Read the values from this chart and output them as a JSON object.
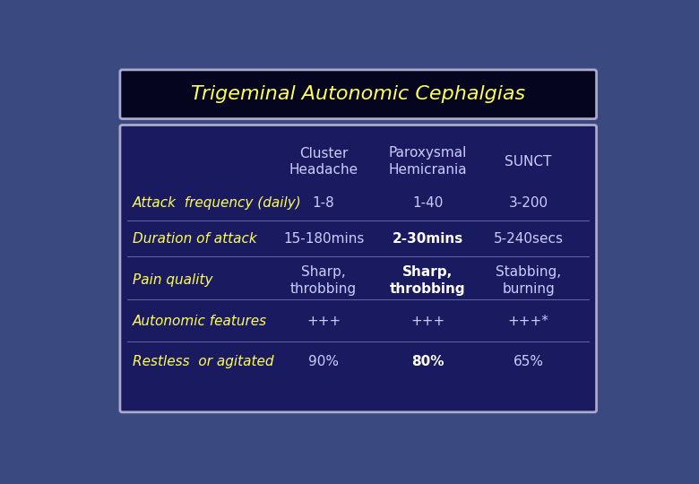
{
  "title": "Trigeminal Autonomic Cephalgias",
  "title_color": "#FFFF55",
  "title_bg": "#050520",
  "title_border": "#aaaacc",
  "body_bg": "#1a1a60",
  "body_border": "#aaaacc",
  "outer_bg": "#3a4a80",
  "col_headers": [
    "Cluster\nHeadache",
    "Paroxysmal\nHemicrania",
    "SUNCT"
  ],
  "col_header_color": "#ccccff",
  "row_labels": [
    "Attack  frequency (daily)",
    "Duration of attack",
    "Pain quality",
    "Autonomic features",
    "Restless  or agitated"
  ],
  "row_label_color": "#FFFF55",
  "col1_data": [
    "1-8",
    "15-180mins",
    "Sharp,\nthrobbing",
    "+++",
    "90%"
  ],
  "col2_data": [
    "1-40",
    "2-30mins",
    "Sharp,\nthrobbing",
    "+++",
    "80%"
  ],
  "col3_data": [
    "3-200",
    "5-240secs",
    "Stabbing,\nburning",
    "+++*",
    "65%"
  ],
  "col1_colors": [
    "#ccccff",
    "#ccccff",
    "#ccccff",
    "#ccccff",
    "#ccccff"
  ],
  "col2_colors": [
    "#ccccff",
    "#ffffff",
    "#ffffff",
    "#ccccff",
    "#ffffff"
  ],
  "col3_colors": [
    "#ccccff",
    "#ccccff",
    "#ccccff",
    "#ccccff",
    "#ccccff"
  ],
  "col2_bold": [
    false,
    true,
    true,
    false,
    true
  ],
  "font_family": "DejaVu Sans",
  "title_fontsize": 16,
  "header_fontsize": 11,
  "row_fontsize": 11,
  "data_fontsize": 11
}
